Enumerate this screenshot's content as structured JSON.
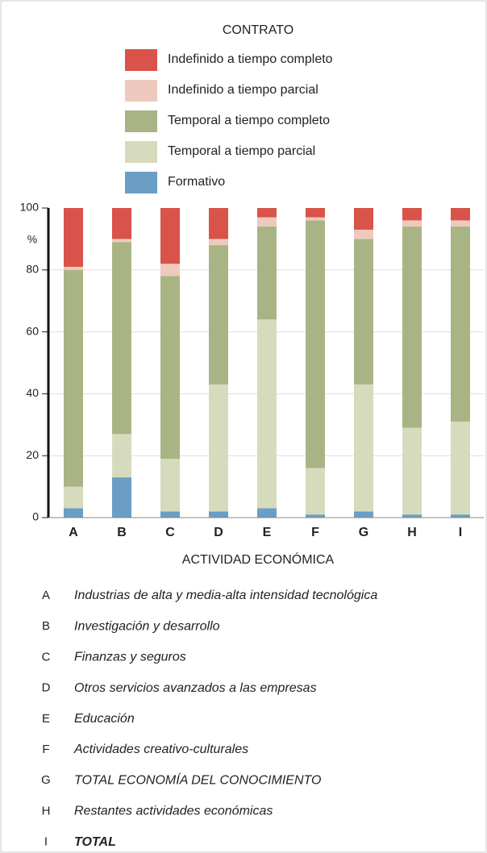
{
  "chart_data": {
    "type": "stacked_bar",
    "legend_title": "CONTRATO",
    "x_label": "ACTIVIDAD ECONÓMICA",
    "y_unit": "%",
    "categories": [
      "A",
      "B",
      "C",
      "D",
      "E",
      "F",
      "G",
      "H",
      "I"
    ],
    "category_names": [
      "Industrias de alta y media-alta intensidad tecnológica",
      "Investigación y desarrollo",
      "Finanzas y seguros",
      "Otros servicios avanzados a las empresas",
      "Educación",
      "Actividades creativo-culturales",
      "TOTAL ECONOMÍA DEL CONOCIMIENTO",
      "Restantes actividades económicas",
      "TOTAL"
    ],
    "series": [
      {
        "name": "Formativo",
        "color": "#6a9ec4",
        "values": [
          3,
          13,
          2,
          2,
          3,
          1,
          2,
          1,
          1
        ]
      },
      {
        "name": "Temporal a tiempo parcial",
        "color": "#d7dbbd",
        "values": [
          7,
          14,
          17,
          41,
          61,
          15,
          41,
          28,
          30
        ]
      },
      {
        "name": "Temporal a tiempo completo",
        "color": "#a9b484",
        "values": [
          70,
          62,
          59,
          45,
          30,
          80,
          47,
          65,
          63
        ]
      },
      {
        "name": "Indefinido a tiempo parcial",
        "color": "#eec9bd",
        "values": [
          1,
          1,
          4,
          2,
          3,
          1,
          3,
          2,
          2
        ]
      },
      {
        "name": "Indefinido a tiempo completo",
        "color": "#d9534a",
        "values": [
          19,
          10,
          18,
          10,
          3,
          3,
          7,
          4,
          4
        ]
      }
    ],
    "ylim": [
      0,
      100
    ],
    "yticks": [
      0,
      20,
      40,
      60,
      80,
      100
    ],
    "grid": true
  }
}
